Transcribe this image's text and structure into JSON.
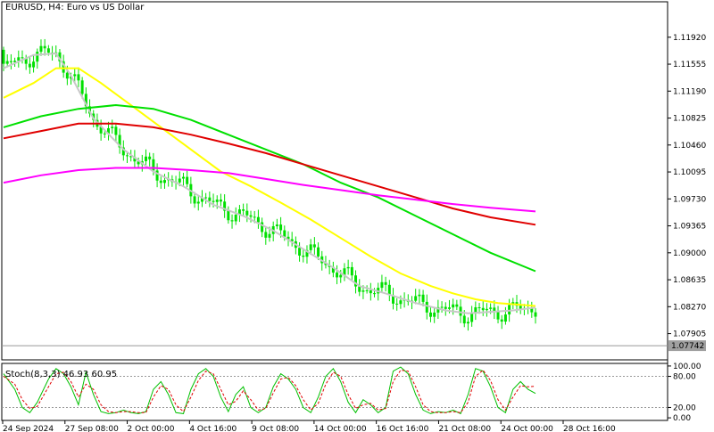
{
  "chart_data": [
    {
      "type": "candlestick",
      "title": "EURUSD, H4:  Euro vs US Dollar",
      "current_price": "1.07742",
      "y_ticks": [
        "1.11920",
        "1.11555",
        "1.11190",
        "1.10825",
        "1.10460",
        "1.10095",
        "1.09730",
        "1.09365",
        "1.09000",
        "1.08635",
        "1.08270",
        "1.07905"
      ],
      "ylim": [
        1.0755,
        1.124
      ],
      "x_tick_labels": [
        "24 Sep 2024",
        "27 Sep 08:00",
        "2 Oct 00:00",
        "4 Oct 16:00",
        "9 Oct 08:00",
        "14 Oct 00:00",
        "16 Oct 16:00",
        "21 Oct 08:00",
        "24 Oct 00:00",
        "28 Oct 16:00"
      ],
      "series": [
        {
          "kind": "ma",
          "color": "#c8c8c8",
          "points": [
            [
              0,
              1.115
            ],
            [
              8,
              1.1168
            ],
            [
              14,
              1.117
            ],
            [
              18,
              1.114
            ],
            [
              24,
              1.1082
            ],
            [
              32,
              1.104
            ],
            [
              40,
              1.101
            ],
            [
              48,
              1.099
            ],
            [
              56,
              1.0965
            ],
            [
              64,
              1.095
            ],
            [
              72,
              1.093
            ],
            [
              80,
              1.0905
            ],
            [
              88,
              1.088
            ],
            [
              95,
              1.0855
            ],
            [
              102,
              1.0845
            ],
            [
              110,
              1.0832
            ],
            [
              118,
              1.0822
            ],
            [
              124,
              1.0818
            ],
            [
              130,
              1.082
            ],
            [
              136,
              1.0822
            ],
            [
              142,
              1.0826
            ]
          ]
        },
        {
          "kind": "ma",
          "color": "#ffff00",
          "points": [
            [
              0,
              1.111
            ],
            [
              8,
              1.113
            ],
            [
              14,
              1.115
            ],
            [
              20,
              1.115
            ],
            [
              26,
              1.113
            ],
            [
              34,
              1.11
            ],
            [
              42,
              1.107
            ],
            [
              50,
              1.104
            ],
            [
              58,
              1.101
            ],
            [
              66,
              1.099
            ],
            [
              74,
              1.0968
            ],
            [
              82,
              1.0945
            ],
            [
              90,
              1.092
            ],
            [
              98,
              1.0895
            ],
            [
              106,
              1.0872
            ],
            [
              114,
              1.0855
            ],
            [
              120,
              1.0845
            ],
            [
              126,
              1.0837
            ],
            [
              132,
              1.0832
            ],
            [
              142,
              1.0828
            ]
          ]
        },
        {
          "kind": "ma",
          "color": "#00e000",
          "points": [
            [
              0,
              1.107
            ],
            [
              10,
              1.1085
            ],
            [
              20,
              1.1095
            ],
            [
              30,
              1.11
            ],
            [
              40,
              1.1095
            ],
            [
              50,
              1.108
            ],
            [
              60,
              1.106
            ],
            [
              70,
              1.104
            ],
            [
              80,
              1.102
            ],
            [
              90,
              1.0995
            ],
            [
              100,
              1.0975
            ],
            [
              110,
              1.095
            ],
            [
              120,
              1.0925
            ],
            [
              130,
              1.09
            ],
            [
              142,
              1.0875
            ]
          ]
        },
        {
          "kind": "ma",
          "color": "#e00000",
          "points": [
            [
              0,
              1.1055
            ],
            [
              10,
              1.1065
            ],
            [
              20,
              1.1075
            ],
            [
              30,
              1.1075
            ],
            [
              40,
              1.107
            ],
            [
              50,
              1.106
            ],
            [
              60,
              1.1048
            ],
            [
              70,
              1.1035
            ],
            [
              80,
              1.102
            ],
            [
              90,
              1.1005
            ],
            [
              100,
              1.099
            ],
            [
              110,
              1.0975
            ],
            [
              120,
              1.096
            ],
            [
              130,
              1.0948
            ],
            [
              142,
              1.0938
            ]
          ]
        },
        {
          "kind": "ma",
          "color": "#ff00ff",
          "points": [
            [
              0,
              1.0995
            ],
            [
              10,
              1.1005
            ],
            [
              20,
              1.1012
            ],
            [
              30,
              1.1015
            ],
            [
              40,
              1.1015
            ],
            [
              50,
              1.1012
            ],
            [
              60,
              1.1008
            ],
            [
              70,
              1.1
            ],
            [
              80,
              1.0992
            ],
            [
              90,
              1.0985
            ],
            [
              100,
              1.0978
            ],
            [
              110,
              1.0972
            ],
            [
              120,
              1.0966
            ],
            [
              130,
              1.0961
            ],
            [
              142,
              1.0956
            ]
          ]
        }
      ]
    },
    {
      "type": "line",
      "title": "Stoch(8,3,3) 46.93 60.95",
      "y_ticks": [
        "100.00",
        "80.00",
        "20.00",
        "0.00"
      ],
      "ylim": [
        -5,
        105
      ],
      "series": [
        {
          "name": "main",
          "color": "#00c000",
          "points": [
            [
              0,
              85
            ],
            [
              3,
              55
            ],
            [
              5,
              20
            ],
            [
              7,
              10
            ],
            [
              9,
              30
            ],
            [
              12,
              75
            ],
            [
              14,
              95
            ],
            [
              16,
              85
            ],
            [
              18,
              60
            ],
            [
              20,
              25
            ],
            [
              22,
              88
            ],
            [
              24,
              45
            ],
            [
              26,
              12
            ],
            [
              28,
              8
            ],
            [
              30,
              10
            ],
            [
              32,
              15
            ],
            [
              34,
              10
            ],
            [
              36,
              8
            ],
            [
              38,
              12
            ],
            [
              40,
              55
            ],
            [
              42,
              70
            ],
            [
              44,
              45
            ],
            [
              46,
              10
            ],
            [
              48,
              8
            ],
            [
              50,
              55
            ],
            [
              52,
              85
            ],
            [
              54,
              95
            ],
            [
              56,
              80
            ],
            [
              58,
              40
            ],
            [
              60,
              12
            ],
            [
              62,
              45
            ],
            [
              64,
              60
            ],
            [
              66,
              20
            ],
            [
              68,
              10
            ],
            [
              70,
              20
            ],
            [
              72,
              60
            ],
            [
              74,
              85
            ],
            [
              76,
              75
            ],
            [
              78,
              55
            ],
            [
              80,
              20
            ],
            [
              82,
              10
            ],
            [
              84,
              40
            ],
            [
              86,
              80
            ],
            [
              88,
              95
            ],
            [
              90,
              70
            ],
            [
              92,
              30
            ],
            [
              94,
              10
            ],
            [
              96,
              35
            ],
            [
              98,
              25
            ],
            [
              100,
              10
            ],
            [
              102,
              20
            ],
            [
              104,
              90
            ],
            [
              106,
              98
            ],
            [
              108,
              85
            ],
            [
              110,
              45
            ],
            [
              112,
              15
            ],
            [
              114,
              8
            ],
            [
              116,
              12
            ],
            [
              118,
              10
            ],
            [
              120,
              15
            ],
            [
              122,
              8
            ],
            [
              124,
              45
            ],
            [
              126,
              95
            ],
            [
              128,
              90
            ],
            [
              130,
              60
            ],
            [
              132,
              20
            ],
            [
              134,
              10
            ],
            [
              136,
              55
            ],
            [
              138,
              70
            ],
            [
              140,
              55
            ],
            [
              142,
              47
            ]
          ]
        },
        {
          "name": "signal",
          "color": "#e00000",
          "points": [
            [
              0,
              80
            ],
            [
              3,
              65
            ],
            [
              5,
              35
            ],
            [
              7,
              18
            ],
            [
              9,
              22
            ],
            [
              12,
              60
            ],
            [
              14,
              85
            ],
            [
              16,
              88
            ],
            [
              18,
              70
            ],
            [
              20,
              40
            ],
            [
              22,
              65
            ],
            [
              24,
              55
            ],
            [
              26,
              25
            ],
            [
              28,
              12
            ],
            [
              30,
              10
            ],
            [
              32,
              12
            ],
            [
              34,
              12
            ],
            [
              36,
              10
            ],
            [
              38,
              10
            ],
            [
              40,
              40
            ],
            [
              42,
              62
            ],
            [
              44,
              55
            ],
            [
              46,
              25
            ],
            [
              48,
              12
            ],
            [
              50,
              40
            ],
            [
              52,
              72
            ],
            [
              54,
              90
            ],
            [
              56,
              85
            ],
            [
              58,
              55
            ],
            [
              60,
              25
            ],
            [
              62,
              32
            ],
            [
              64,
              52
            ],
            [
              66,
              35
            ],
            [
              68,
              15
            ],
            [
              70,
              18
            ],
            [
              72,
              48
            ],
            [
              74,
              75
            ],
            [
              76,
              78
            ],
            [
              78,
              62
            ],
            [
              80,
              35
            ],
            [
              82,
              15
            ],
            [
              84,
              28
            ],
            [
              86,
              65
            ],
            [
              88,
              88
            ],
            [
              90,
              80
            ],
            [
              92,
              45
            ],
            [
              94,
              18
            ],
            [
              96,
              25
            ],
            [
              98,
              28
            ],
            [
              100,
              15
            ],
            [
              102,
              18
            ],
            [
              104,
              70
            ],
            [
              106,
              92
            ],
            [
              108,
              90
            ],
            [
              110,
              60
            ],
            [
              112,
              25
            ],
            [
              114,
              12
            ],
            [
              116,
              10
            ],
            [
              118,
              10
            ],
            [
              120,
              12
            ],
            [
              122,
              10
            ],
            [
              124,
              30
            ],
            [
              126,
              80
            ],
            [
              128,
              92
            ],
            [
              130,
              72
            ],
            [
              132,
              35
            ],
            [
              134,
              15
            ],
            [
              136,
              40
            ],
            [
              138,
              62
            ],
            [
              140,
              60
            ],
            [
              142,
              61
            ]
          ]
        }
      ]
    }
  ],
  "colors": {
    "up": "#00e000",
    "down": "#00e000",
    "grid_level": "#999999",
    "background": "#ffffff"
  }
}
